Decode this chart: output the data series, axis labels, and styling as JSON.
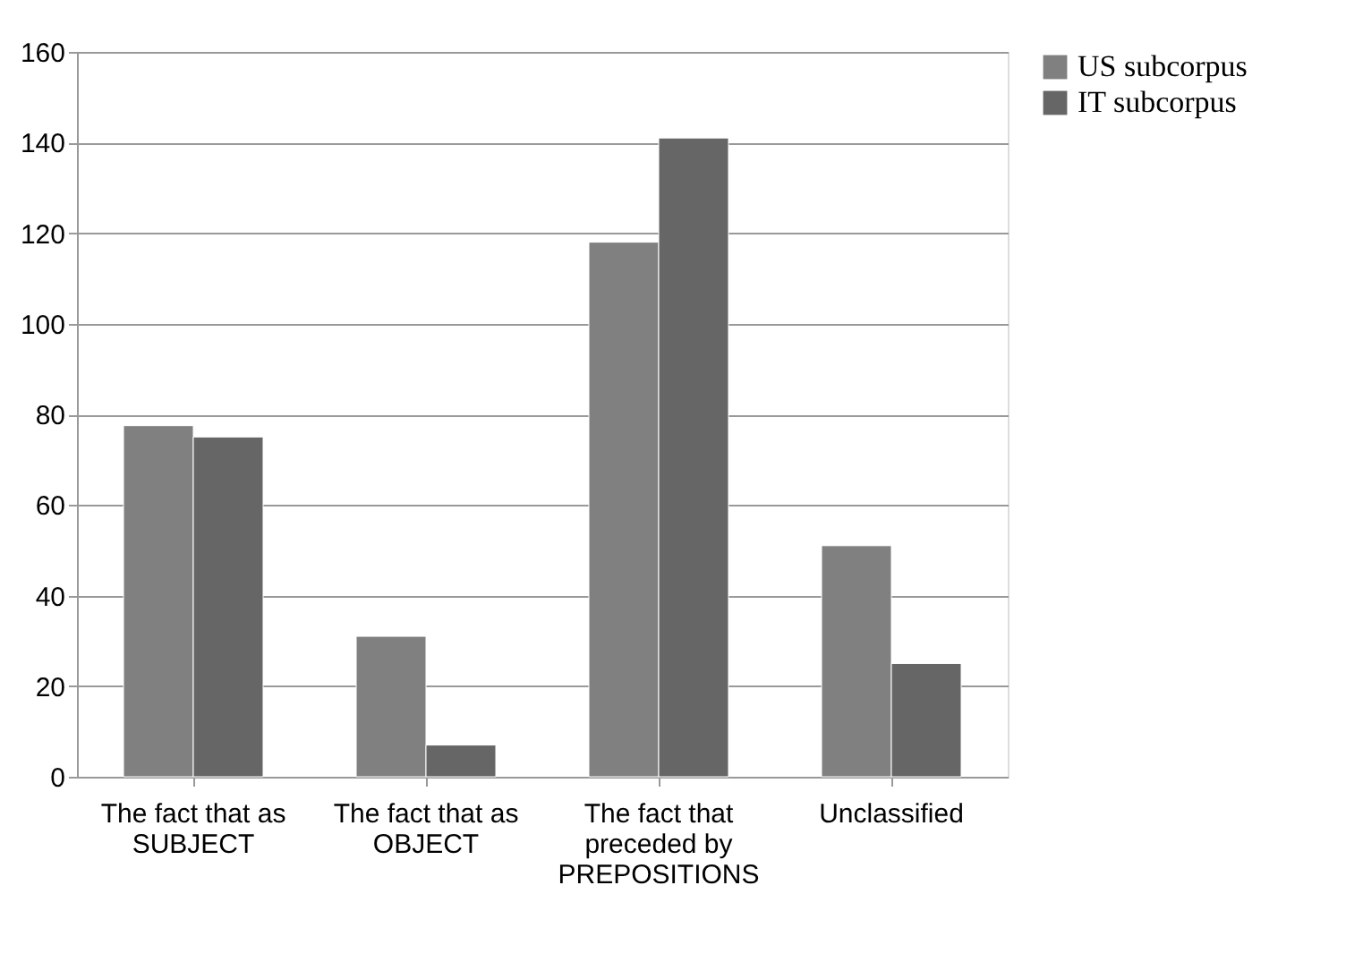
{
  "chart_data": {
    "type": "bar",
    "categories": [
      "The fact that as SUBJECT",
      "The fact that as OBJECT",
      "The fact that preceded by PREPOSITIONS",
      "Unclassified"
    ],
    "series": [
      {
        "name": "US subcorpus",
        "color": "#808080",
        "values": [
          77.5,
          31,
          118,
          51
        ]
      },
      {
        "name": "IT subcorpus",
        "color": "#666666",
        "values": [
          75,
          7,
          141,
          25
        ]
      }
    ],
    "ylim": [
      0,
      160
    ],
    "yticks": [
      0,
      20,
      40,
      60,
      80,
      100,
      120,
      140,
      160
    ],
    "grid": "y",
    "legend": "right"
  }
}
